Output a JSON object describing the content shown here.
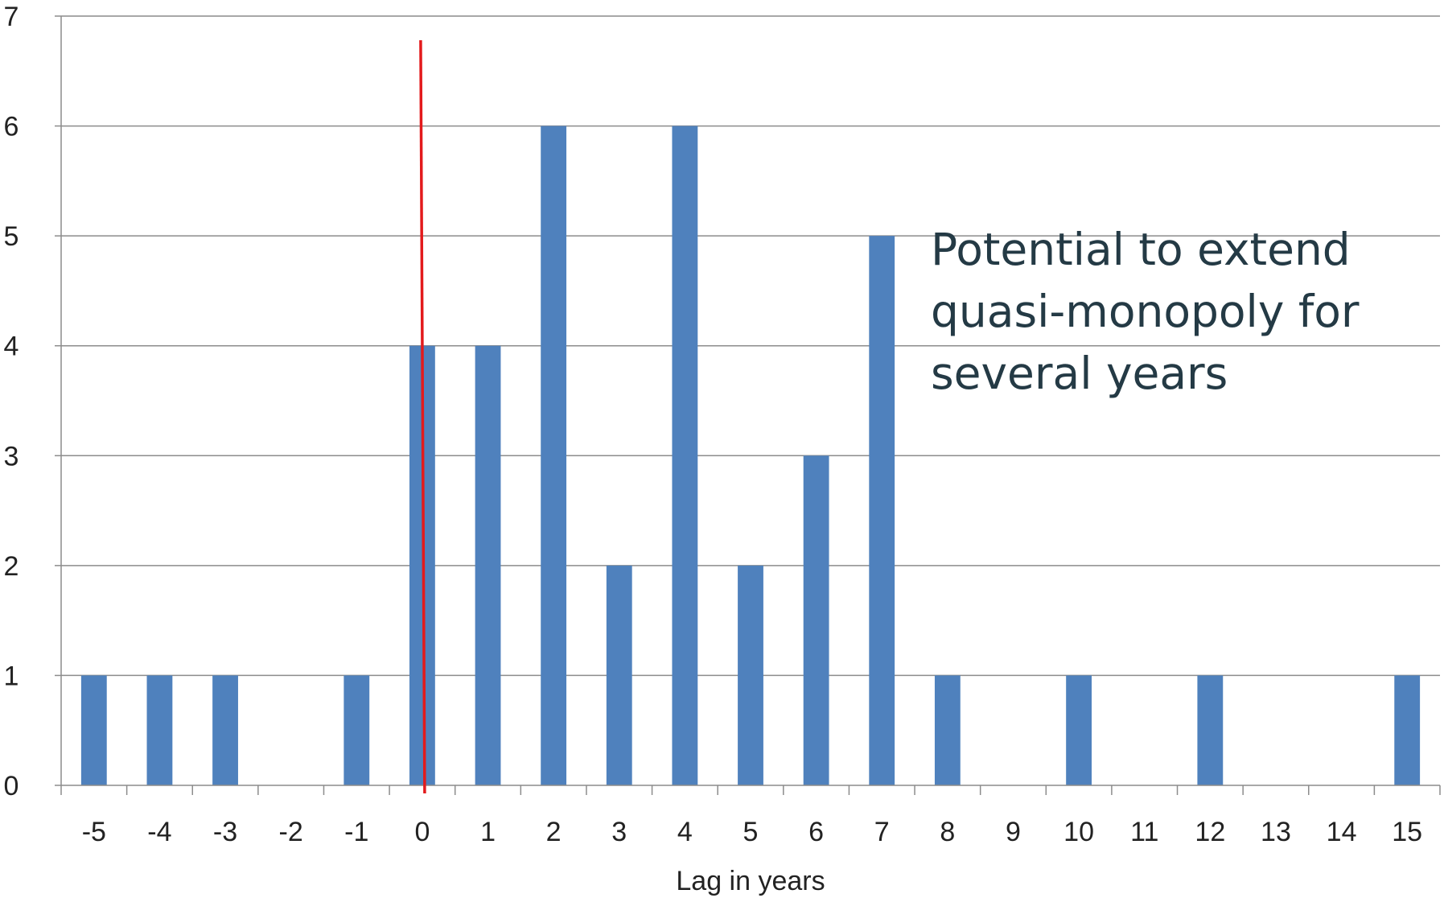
{
  "chart_data": {
    "type": "bar",
    "categories": [
      "-5",
      "-4",
      "-3",
      "-2",
      "-1",
      "0",
      "1",
      "2",
      "3",
      "4",
      "5",
      "6",
      "7",
      "8",
      "9",
      "10",
      "11",
      "12",
      "13",
      "14",
      "15"
    ],
    "values": [
      1,
      1,
      1,
      0,
      1,
      4,
      4,
      6,
      2,
      6,
      2,
      3,
      5,
      1,
      0,
      1,
      0,
      1,
      0,
      0,
      1
    ],
    "title": "",
    "xlabel": "Lag in years",
    "ylabel": "",
    "ylim": [
      0,
      7
    ],
    "yticks": [
      "0",
      "1",
      "2",
      "3",
      "4",
      "5",
      "6",
      "7"
    ],
    "grid": "horizontal",
    "bar_color": "#4f81bd",
    "reference_line": {
      "x": "0",
      "color": "#e31a1c"
    },
    "annotation_lines": [
      "Potential to extend",
      "quasi-monopoly for",
      "several years"
    ]
  }
}
